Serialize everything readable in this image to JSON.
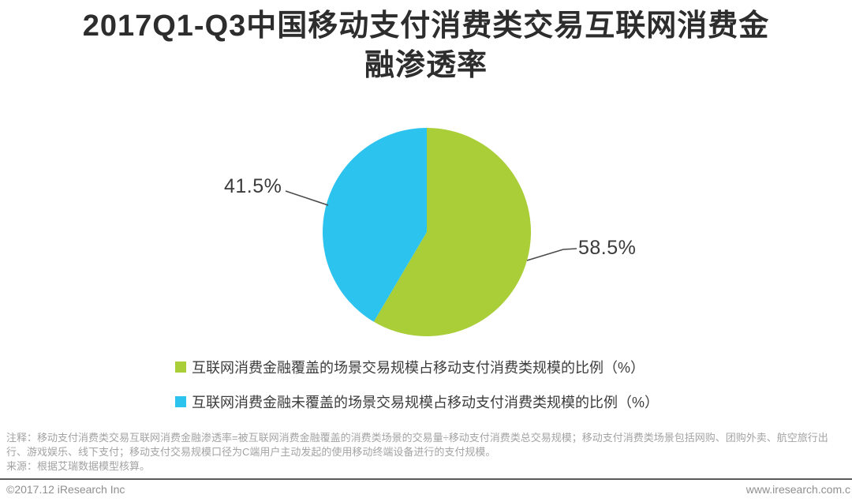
{
  "chart_data": {
    "type": "pie",
    "title": "2017Q1-Q3中国移动支付消费类交易互联网消费金融渗透率",
    "start_angle_deg": 0,
    "direction": "clockwise",
    "legend_position": "bottom",
    "slices": [
      {
        "label": "互联网消费金融覆盖的场景交易规模占移动支付消费类规模的比例（%）",
        "value": 58.5,
        "display": "58.5%",
        "color": "#a9ce38"
      },
      {
        "label": "互联网消费金融未覆盖的场景交易规模占移动支付消费类规模的比例（%）",
        "value": 41.5,
        "display": "41.5%",
        "color": "#2cc3ef"
      }
    ]
  },
  "notes": {
    "annotation": "注释：移动支付消费类交易互联网消费金融渗透率=被互联网消费金融覆盖的消费类场景的交易量÷移动支付消费类总交易规模；移动支付消费类场景包括网购、团购外卖、航空旅行出行、游戏娱乐、线下支付；移动支付交易规模口径为C端用户主动发起的使用移动终端设备进行的支付规模。",
    "source": "来源：根据艾瑞数据模型核算。"
  },
  "footer": {
    "left": "©2017.12 iResearch Inc",
    "right": "www.iresearch.com.c"
  }
}
